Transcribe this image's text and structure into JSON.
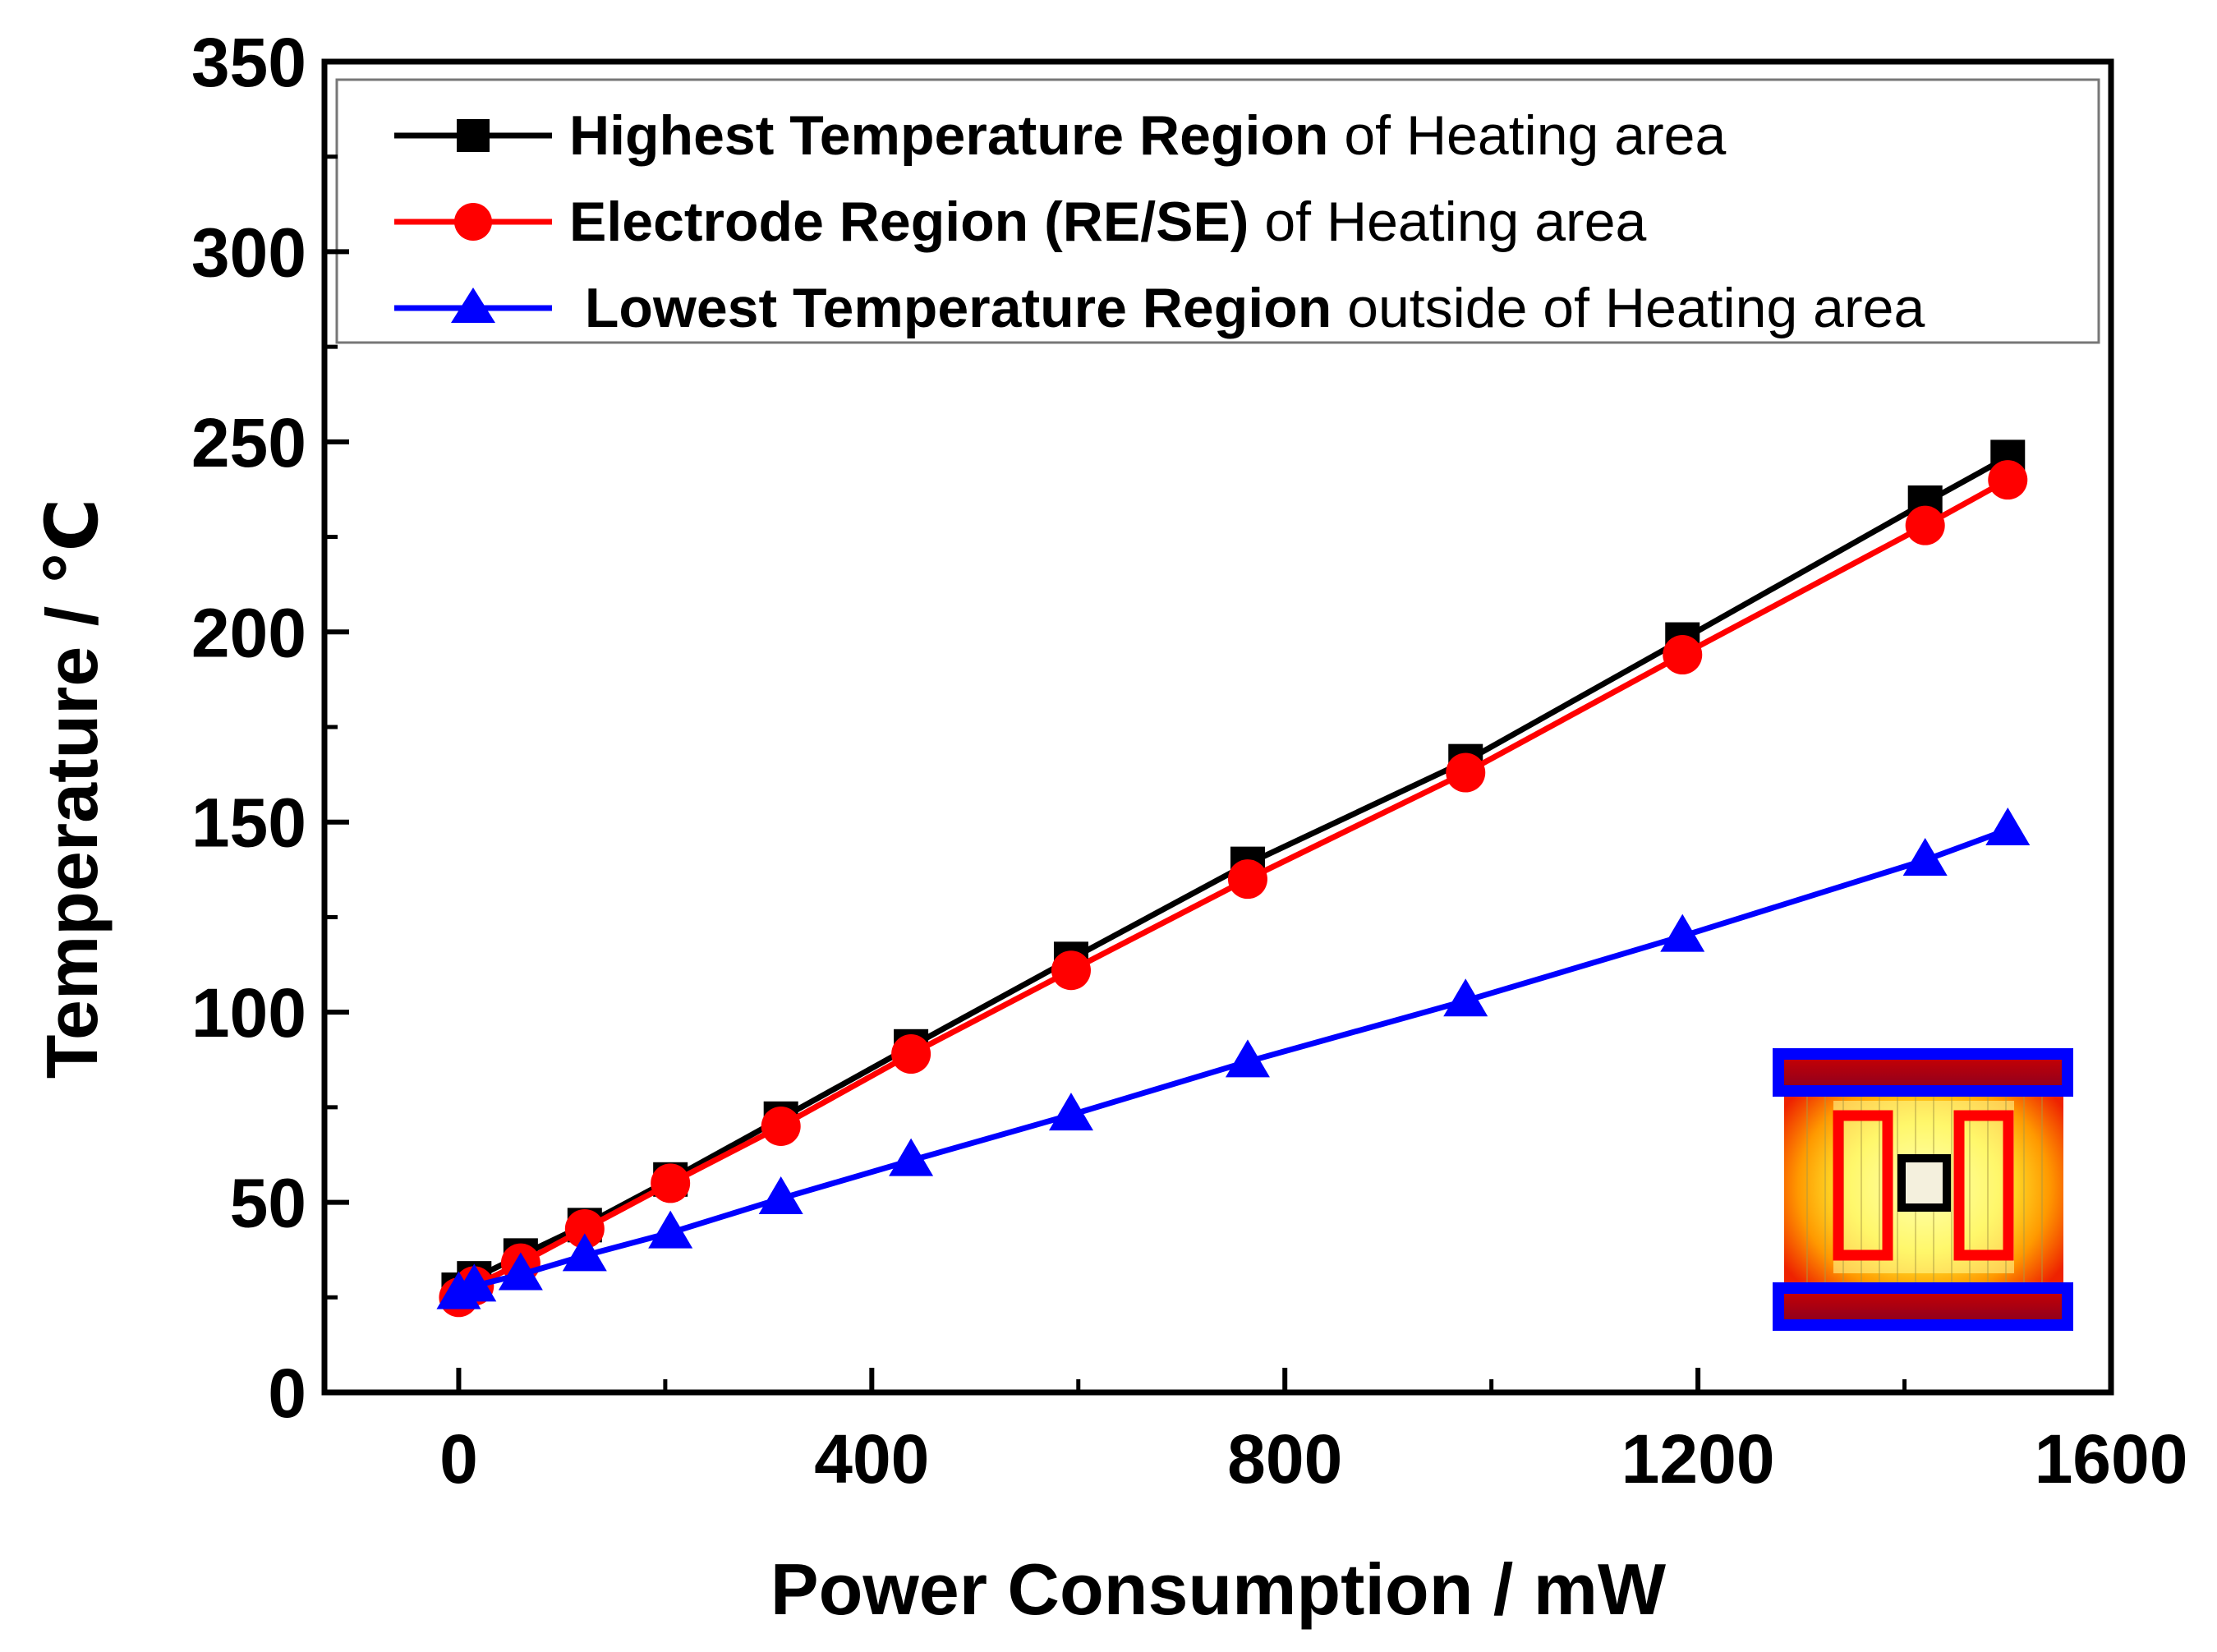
{
  "chart_data": {
    "type": "line",
    "title": "",
    "xlabel": "Power Consumption / mW",
    "ylabel": "Temperature / ℃",
    "xlim": [
      -130,
      1600
    ],
    "ylim": [
      0,
      350
    ],
    "xticks": [
      0,
      400,
      800,
      1200,
      1600
    ],
    "xtick_labels": [
      "0",
      "400",
      "800",
      "1200",
      "1600"
    ],
    "yticks": [
      0,
      50,
      100,
      150,
      200,
      250,
      300,
      350
    ],
    "ytick_labels": [
      "0",
      "50",
      "100",
      "150",
      "200",
      "250",
      "300",
      "350"
    ],
    "grid": false,
    "legend_position": "top",
    "series": [
      {
        "name": "Highest Temperature Region of Heating area",
        "legend_bold": "Highest Temperature Region",
        "legend_rest": " of Heating area",
        "color": "#000000",
        "marker": "square",
        "x": [
          0,
          15,
          60,
          122,
          205,
          312,
          438,
          593,
          764,
          975,
          1185,
          1420,
          1500
        ],
        "y": [
          27,
          30,
          36,
          44,
          56,
          72,
          91,
          114,
          139,
          166,
          198,
          234,
          246
        ]
      },
      {
        "name": "Electrode Region (RE/SE) of Heating area",
        "legend_bold": "Electrode Region (RE/SE)",
        "legend_rest": " of Heating area",
        "color": "#ff0000",
        "marker": "circle",
        "x": [
          0,
          15,
          60,
          122,
          205,
          312,
          438,
          593,
          764,
          975,
          1185,
          1420,
          1500
        ],
        "y": [
          25,
          28,
          34,
          43,
          55,
          70,
          89,
          111,
          135,
          163,
          194,
          228,
          240
        ]
      },
      {
        "name": "Lowest Temperature Region outside of Heating area",
        "legend_bold": " Lowest Temperature Region",
        "legend_rest": " outside of Heating area",
        "color": "#0000ff",
        "marker": "triangle",
        "x": [
          0,
          15,
          60,
          122,
          205,
          312,
          438,
          593,
          764,
          975,
          1185,
          1420,
          1500
        ],
        "y": [
          26,
          28,
          31,
          36,
          42,
          51,
          61,
          73,
          87,
          103,
          120,
          140,
          148
        ]
      }
    ],
    "inset": {
      "description_colors": {
        "outer": "#ff3300",
        "inner": "#ffff66",
        "electrode": "#ff0000",
        "bar": "#0000ff",
        "center": "#000000"
      }
    }
  }
}
